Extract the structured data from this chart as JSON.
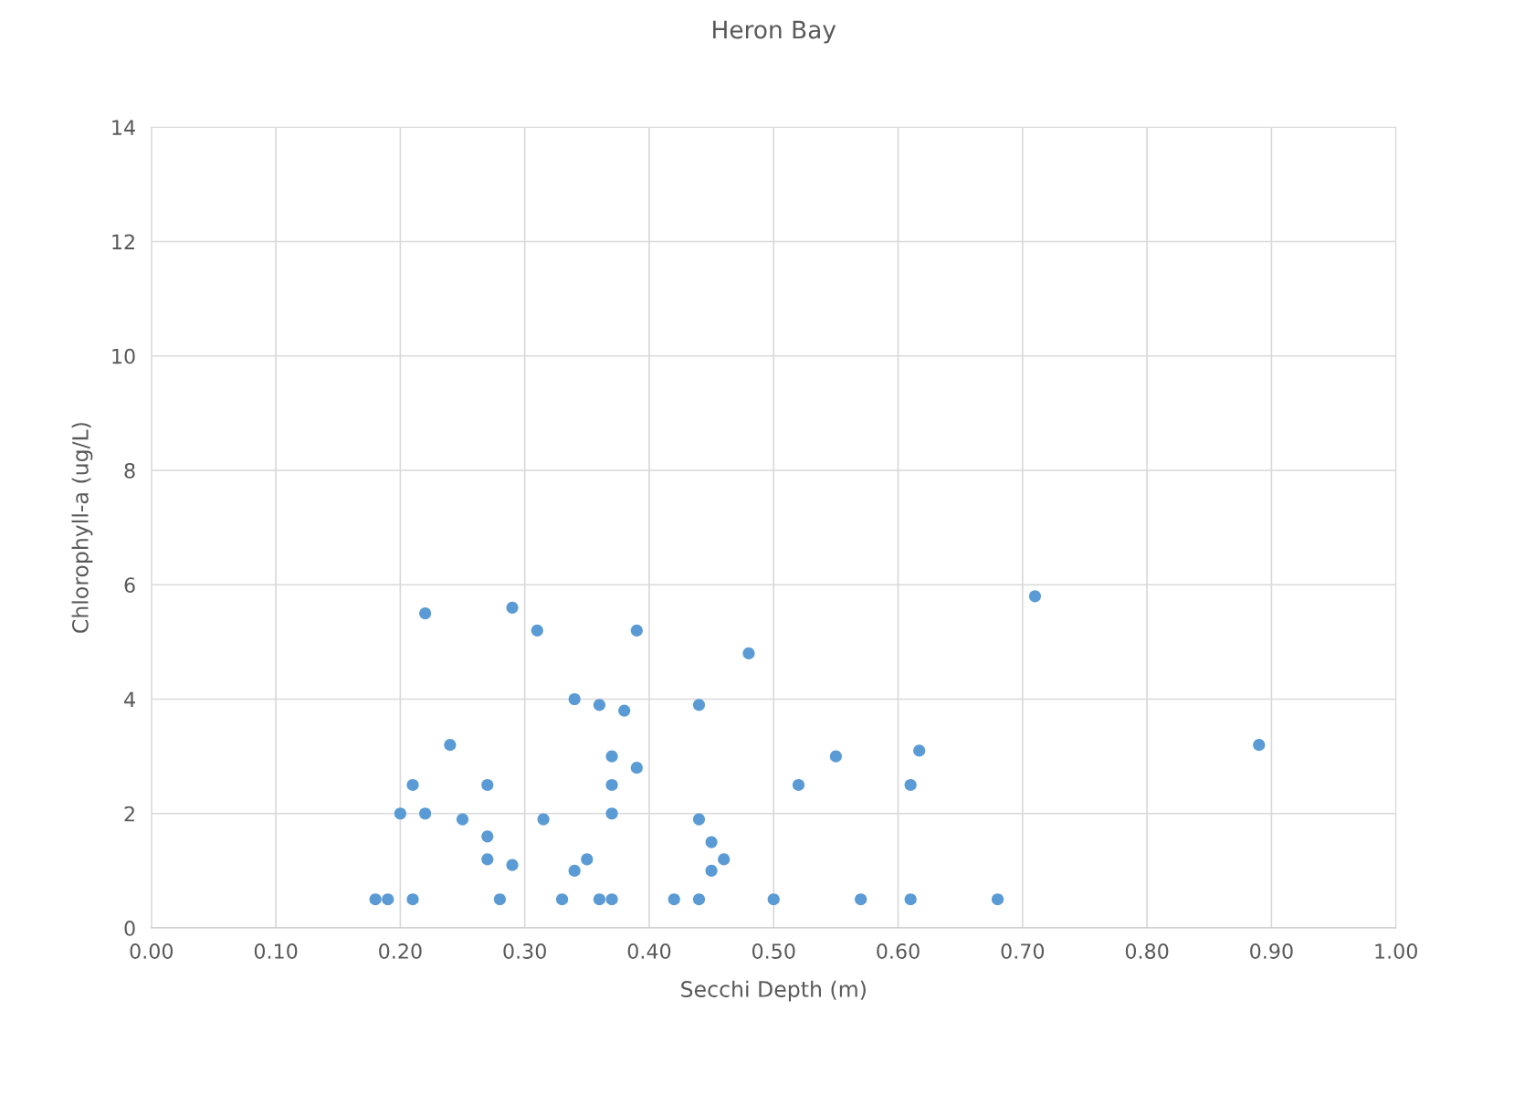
{
  "chart_data": {
    "type": "scatter",
    "title": "Heron Bay",
    "xlabel": "Secchi Depth (m)",
    "ylabel": "Chlorophyll-a (ug/L)",
    "x": [
      0.18,
      0.19,
      0.21,
      0.28,
      0.33,
      0.36,
      0.37,
      0.42,
      0.44,
      0.5,
      0.57,
      0.61,
      0.68,
      0.22,
      0.29,
      0.31,
      0.39,
      0.48,
      0.71,
      0.34,
      0.36,
      0.38,
      0.44,
      0.24,
      0.37,
      0.39,
      0.55,
      0.617,
      0.89,
      0.21,
      0.27,
      0.37,
      0.52,
      0.61,
      0.2,
      0.22,
      0.25,
      0.315,
      0.37,
      0.44,
      0.27,
      0.45,
      0.27,
      0.29,
      0.35,
      0.34,
      0.45,
      0.46
    ],
    "values": [
      0.5,
      0.5,
      0.5,
      0.5,
      0.5,
      0.5,
      0.5,
      0.5,
      0.5,
      0.5,
      0.5,
      0.5,
      0.5,
      5.5,
      5.6,
      5.2,
      5.2,
      4.8,
      5.8,
      4.0,
      3.9,
      3.8,
      3.9,
      3.2,
      3.0,
      2.8,
      3.0,
      3.1,
      3.2,
      2.5,
      2.5,
      2.5,
      2.5,
      2.5,
      2.0,
      2.0,
      1.9,
      1.9,
      2.0,
      1.9,
      1.6,
      1.5,
      1.2,
      1.1,
      1.2,
      1.0,
      1.0,
      1.2
    ],
    "color": "#5b9bd5",
    "marker": "circle",
    "grid": true,
    "xlim": [
      0,
      1
    ],
    "xticks": [
      {
        "value": 0,
        "label": "0.00"
      },
      {
        "value": 0.1,
        "label": "0.10"
      },
      {
        "value": 0.2,
        "label": "0.20"
      },
      {
        "value": 0.3,
        "label": "0.30"
      },
      {
        "value": 0.4,
        "label": "0.40"
      },
      {
        "value": 0.5,
        "label": "0.50"
      },
      {
        "value": 0.6,
        "label": "0.60"
      },
      {
        "value": 0.7,
        "label": "0.70"
      },
      {
        "value": 0.8,
        "label": "0.80"
      },
      {
        "value": 0.9,
        "label": "0.90"
      },
      {
        "value": 1,
        "label": "1.00"
      }
    ],
    "ylim": [
      0,
      14
    ],
    "yticks": [
      0,
      2,
      4,
      6,
      8,
      10,
      12,
      14
    ]
  }
}
